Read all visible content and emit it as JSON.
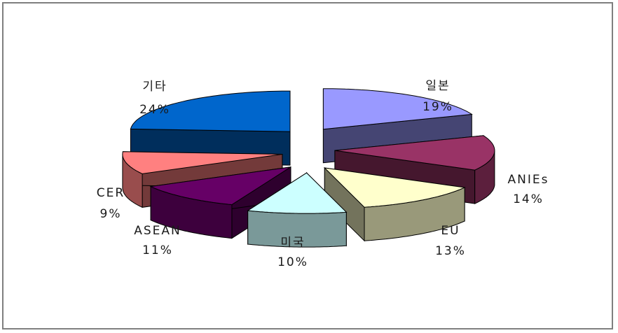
{
  "chart_data": {
    "type": "pie",
    "variant": "3d-exploded",
    "slices": [
      {
        "label": "일본",
        "value": 19,
        "value_label": "19%",
        "color": "#9999ff"
      },
      {
        "label": "ANIEs",
        "value": 14,
        "value_label": "14%",
        "color": "#993366"
      },
      {
        "label": "EU",
        "value": 13,
        "value_label": "13%",
        "color": "#ffffcc"
      },
      {
        "label": "미국",
        "value": 10,
        "value_label": "10%",
        "color": "#ccffff"
      },
      {
        "label": "ASEAN",
        "value": 11,
        "value_label": "11%",
        "color": "#660066"
      },
      {
        "label": "CER",
        "value": 9,
        "value_label": "9%",
        "color": "#ff8080"
      },
      {
        "label": "기타",
        "value": 24,
        "value_label": "24%",
        "color": "#0066cc"
      }
    ]
  }
}
